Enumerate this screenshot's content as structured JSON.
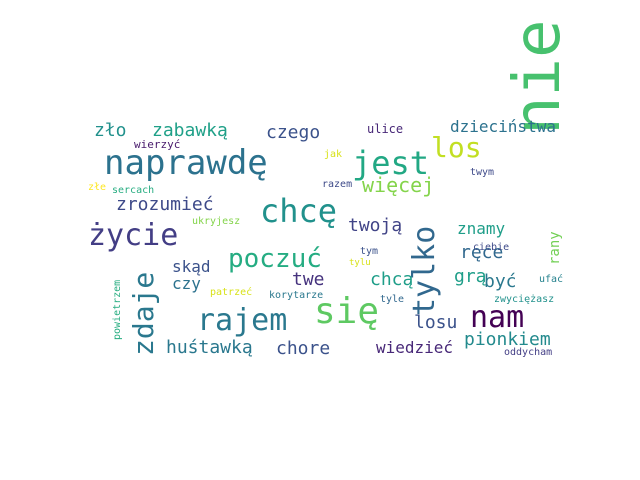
{
  "words": [
    {
      "text": "nie",
      "color": "#47c16e"
    },
    {
      "text": "naprawdę",
      "color": "#2c728e"
    },
    {
      "text": "jest",
      "color": "#22a884"
    },
    {
      "text": "chcę",
      "color": "#21918c"
    },
    {
      "text": "życie",
      "color": "#433e85"
    },
    {
      "text": "się",
      "color": "#5ec962"
    },
    {
      "text": "rajem",
      "color": "#2a788e"
    },
    {
      "text": "nam",
      "color": "#440154"
    },
    {
      "text": "tylko",
      "color": "#31688e"
    },
    {
      "text": "zdaje",
      "color": "#2a788e"
    },
    {
      "text": "poczuć",
      "color": "#25ac82"
    },
    {
      "text": "los",
      "color": "#c2df23"
    },
    {
      "text": "więcej",
      "color": "#84d44b"
    },
    {
      "text": "zło",
      "color": "#21918c"
    },
    {
      "text": "zabawką",
      "color": "#1fa088"
    },
    {
      "text": "czego",
      "color": "#3b528b"
    },
    {
      "text": "dzieciństwa",
      "color": "#2c728e"
    },
    {
      "text": "zrozumieć",
      "color": "#3e4a89"
    },
    {
      "text": "twoją",
      "color": "#414487"
    },
    {
      "text": "huśtawką",
      "color": "#2a788e"
    },
    {
      "text": "chore",
      "color": "#3b528b"
    },
    {
      "text": "pionkiem",
      "color": "#238a8d"
    },
    {
      "text": "wiedzieć",
      "color": "#482878"
    },
    {
      "text": "losu",
      "color": "#3b528b"
    },
    {
      "text": "grą",
      "color": "#1f9e89"
    },
    {
      "text": "być",
      "color": "#2a788e"
    },
    {
      "text": "ręce",
      "color": "#31688e"
    },
    {
      "text": "chcą",
      "color": "#1f9e89"
    },
    {
      "text": "znamy",
      "color": "#1f9e89"
    },
    {
      "text": "twe",
      "color": "#46337e"
    },
    {
      "text": "skąd",
      "color": "#3b528b"
    },
    {
      "text": "czy",
      "color": "#2c728e"
    },
    {
      "text": "rany",
      "color": "#73d056"
    },
    {
      "text": "ulice",
      "color": "#482878"
    },
    {
      "text": "wierzyć",
      "color": "#481a6c"
    },
    {
      "text": "jak",
      "color": "#d8e219"
    },
    {
      "text": "twym",
      "color": "#3e4a89"
    },
    {
      "text": "razem",
      "color": "#3e4a89"
    },
    {
      "text": "złe",
      "color": "#fde725"
    },
    {
      "text": "sercach",
      "color": "#27ad81"
    },
    {
      "text": "ukryjesz",
      "color": "#84d44b"
    },
    {
      "text": "tym",
      "color": "#3b528b"
    },
    {
      "text": "tylu",
      "color": "#d8e219"
    },
    {
      "text": "ciebie",
      "color": "#3e4a89"
    },
    {
      "text": "ufać",
      "color": "#26828e"
    },
    {
      "text": "patrzeć",
      "color": "#d8e219"
    },
    {
      "text": "korytarze",
      "color": "#2a788e"
    },
    {
      "text": "tyle",
      "color": "#31688e"
    },
    {
      "text": "zwyciężasz",
      "color": "#21918c"
    },
    {
      "text": "powietrzem",
      "color": "#27ad81"
    },
    {
      "text": "oddycham",
      "color": "#433e85"
    }
  ]
}
